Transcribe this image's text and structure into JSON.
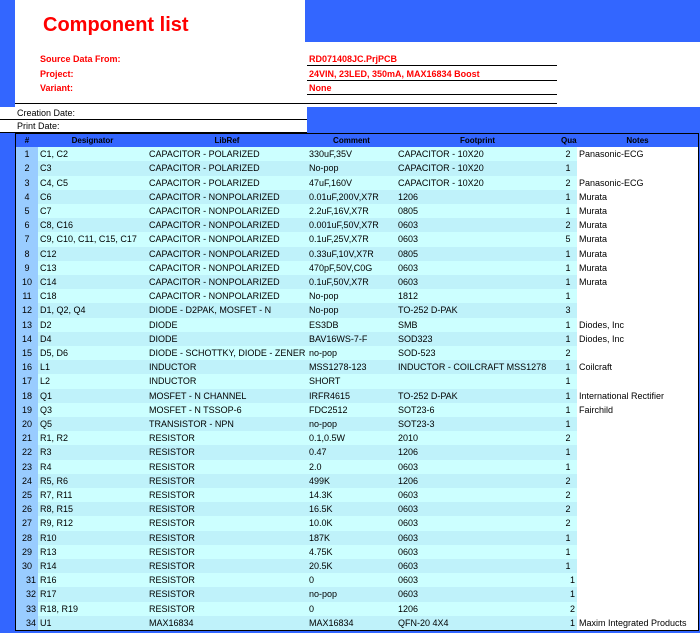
{
  "header": {
    "title": "Component list",
    "fields": [
      {
        "label": "Source Data From:",
        "value": "RD071408JC.PrjPCB"
      },
      {
        "label": "Project:",
        "value": "24VIN, 23LED, 350mA, MAX16834 Boost"
      },
      {
        "label": "Variant:",
        "value": "None"
      }
    ],
    "dates": [
      "Creation Date:",
      "Print Date:"
    ]
  },
  "table": {
    "columns": [
      "#",
      "Designator",
      "LibRef",
      "Comment",
      "Footprint",
      "Quantity",
      "Notes"
    ],
    "rows": [
      [
        "1",
        "C1, C2",
        "CAPACITOR - POLARIZED",
        "330uF,35V",
        "CAPACITOR - 10X20",
        "2",
        "Panasonic-ECG"
      ],
      [
        "2",
        "C3",
        "CAPACITOR - POLARIZED",
        "No-pop",
        "CAPACITOR - 10X20",
        "1",
        null
      ],
      [
        "3",
        "C4, C5",
        "CAPACITOR - POLARIZED",
        "47uF,160V",
        "CAPACITOR - 10X20",
        "2",
        "Panasonic-ECG"
      ],
      [
        "4",
        "C6",
        "CAPACITOR - NONPOLARIZED",
        "0.01uF,200V,X7R",
        "1206",
        "1",
        "Murata"
      ],
      [
        "5",
        "C7",
        "CAPACITOR - NONPOLARIZED",
        "2.2uF,16V,X7R",
        "0805",
        "1",
        "Murata"
      ],
      [
        "6",
        "C8, C16",
        "CAPACITOR - NONPOLARIZED",
        "0.001uF,50V,X7R",
        "0603",
        "2",
        "Murata"
      ],
      [
        "7",
        "C9, C10, C11, C15, C17",
        "CAPACITOR - NONPOLARIZED",
        "0.1uF,25V,X7R",
        "0603",
        "5",
        "Murata"
      ],
      [
        "8",
        "C12",
        "CAPACITOR - NONPOLARIZED",
        "0.33uF,10V,X7R",
        "0805",
        "1",
        "Murata"
      ],
      [
        "9",
        "C13",
        "CAPACITOR - NONPOLARIZED",
        "470pF,50V,C0G",
        "0603",
        "1",
        "Murata"
      ],
      [
        "10",
        "C14",
        "CAPACITOR - NONPOLARIZED",
        "0.1uF,50V,X7R",
        "0603",
        "1",
        "Murata"
      ],
      [
        "11",
        "C18",
        "CAPACITOR - NONPOLARIZED",
        "No-pop",
        "1812",
        "1",
        null
      ],
      [
        "12",
        "D1, Q2, Q4",
        "DIODE - D2PAK, MOSFET - N",
        "No-pop",
        "TO-252 D-PAK",
        "3",
        null
      ],
      [
        "13",
        "D2",
        "DIODE",
        "ES3DB",
        "SMB",
        "1",
        "Diodes, Inc"
      ],
      [
        "14",
        "D4",
        "DIODE",
        "BAV16WS-7-F",
        "SOD323",
        "1",
        "Diodes, Inc"
      ],
      [
        "15",
        "D5, D6",
        "DIODE - SCHOTTKY, DIODE - ZENER",
        "no-pop",
        "SOD-523",
        "2",
        null
      ],
      [
        "16",
        "L1",
        "INDUCTOR",
        "MSS1278-123",
        "INDUCTOR - COILCRAFT MSS1278",
        "1",
        "Coilcraft"
      ],
      [
        "17",
        "L2",
        "INDUCTOR",
        "SHORT",
        null,
        "1",
        null
      ],
      [
        "18",
        "Q1",
        "MOSFET - N CHANNEL",
        "IRFR4615",
        "TO-252 D-PAK",
        "1",
        "International Rectifier"
      ],
      [
        "19",
        "Q3",
        "MOSFET - N TSSOP-6",
        "FDC2512",
        "SOT23-6",
        "1",
        "Fairchild"
      ],
      [
        "20",
        "Q5",
        "TRANSISTOR - NPN",
        "no-pop",
        "SOT23-3",
        "1",
        null
      ],
      [
        "21",
        "R1, R2",
        "RESISTOR",
        "0.1,0.5W",
        "2010",
        "2",
        null
      ],
      [
        "22",
        "R3",
        "RESISTOR",
        "0.47",
        "1206",
        "1",
        null
      ],
      [
        "23",
        "R4",
        "RESISTOR",
        "2.0",
        "0603",
        "1",
        null
      ],
      [
        "24",
        "R5, R6",
        "RESISTOR",
        "499K",
        "1206",
        "2",
        null
      ],
      [
        "25",
        "R7, R11",
        "RESISTOR",
        "14.3K",
        "0603",
        "2",
        null
      ],
      [
        "26",
        "R8, R15",
        "RESISTOR",
        "16.5K",
        "0603",
        "2",
        null
      ],
      [
        "27",
        "R9, R12",
        "RESISTOR",
        "10.0K",
        "0603",
        "2",
        null
      ],
      [
        "28",
        "R10",
        "RESISTOR",
        "187K",
        "0603",
        "1",
        null
      ],
      [
        "29",
        "R13",
        "RESISTOR",
        "4.75K",
        "0603",
        "1",
        null
      ],
      [
        "30",
        "R14",
        "RESISTOR",
        "20.5K",
        "0603",
        "1",
        null
      ],
      [
        "31",
        "R16",
        "RESISTOR",
        "0",
        "0603",
        "1",
        null
      ],
      [
        "32",
        "R17",
        "RESISTOR",
        "no-pop",
        "0603",
        "1",
        null
      ],
      [
        "33",
        "R18, R19",
        "RESISTOR",
        "0",
        "1206",
        "2",
        null
      ],
      [
        "34",
        "U1",
        "MAX16834",
        "MAX16834",
        "QFN-20 4X4",
        "1",
        "Maxim Integrated Products"
      ]
    ]
  }
}
